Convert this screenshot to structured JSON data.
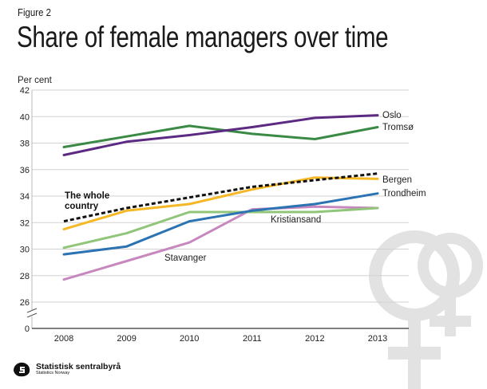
{
  "figure_label": "Figure 2",
  "logo": {
    "name": "Statistisk sentralbyrå",
    "subtitle": "Statistics Norway"
  },
  "colors": {
    "Oslo": "#5c2a82",
    "Tromsø": "#3a8a45",
    "Bergen": "#f5b824",
    "Trondheim": "#2b73b2",
    "Kristiansand": "#90c57a",
    "Stavanger": "#c788bf",
    "The whole country": "#111111",
    "grid": "#d2d2d2",
    "symbol": "#e2e2e2"
  },
  "chart_data": {
    "type": "line",
    "title": "Share of female managers over time",
    "ylabel": "Per cent",
    "xlabel": "",
    "categories": [
      "2008",
      "2009",
      "2010",
      "2011",
      "2012",
      "2013"
    ],
    "yticks": [
      "0",
      "26",
      "28",
      "30",
      "32",
      "34",
      "36",
      "38",
      "40",
      "42"
    ],
    "ylim": [
      26,
      42
    ],
    "axis_break": true,
    "grid": true,
    "series": [
      {
        "name": "Oslo",
        "label": "Oslo",
        "values": [
          37.1,
          38.1,
          38.6,
          39.2,
          39.9,
          40.1
        ]
      },
      {
        "name": "Tromsø",
        "label": "Tromsø",
        "values": [
          37.7,
          38.5,
          39.3,
          38.7,
          38.3,
          39.2
        ]
      },
      {
        "name": "Bergen",
        "label": "Bergen",
        "values": [
          31.5,
          32.9,
          33.4,
          34.5,
          35.4,
          35.3
        ]
      },
      {
        "name": "Trondheim",
        "label": "Trondheim",
        "values": [
          29.6,
          30.2,
          32.1,
          32.9,
          33.4,
          34.2
        ]
      },
      {
        "name": "Kristiansand",
        "label": "Kristiansand",
        "values": [
          30.1,
          31.2,
          32.8,
          32.8,
          32.8,
          33.1
        ]
      },
      {
        "name": "Stavanger",
        "label": "Stavanger",
        "values": [
          27.7,
          29.1,
          30.5,
          33.0,
          33.2,
          33.1
        ]
      },
      {
        "name": "The whole country",
        "label_lines": [
          "The whole",
          "country"
        ],
        "values": [
          32.1,
          33.1,
          33.9,
          34.7,
          35.2,
          35.7
        ],
        "dashed": true
      }
    ]
  }
}
